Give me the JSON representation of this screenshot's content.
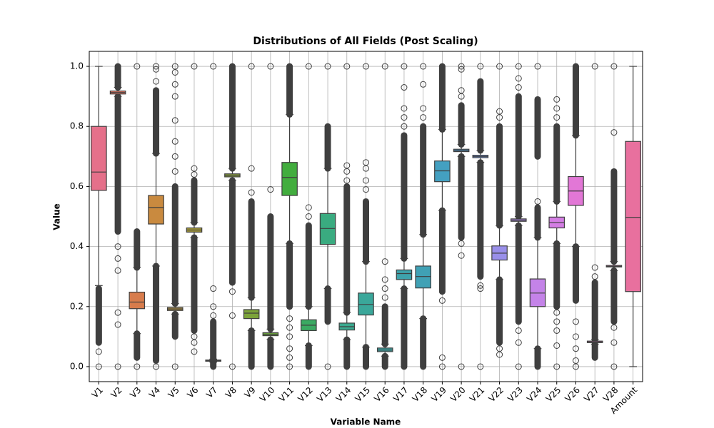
{
  "chart_data": {
    "type": "box",
    "title": "Distributions of All Fields (Post Scaling)",
    "x_label": "Variable Name",
    "y_label": "Value",
    "categories": [
      "V1",
      "V2",
      "V3",
      "V4",
      "V5",
      "V6",
      "V7",
      "V8",
      "V9",
      "V10",
      "V11",
      "V12",
      "V13",
      "V14",
      "V15",
      "V16",
      "V17",
      "V18",
      "V19",
      "V20",
      "V21",
      "V22",
      "V23",
      "V24",
      "V25",
      "V26",
      "V27",
      "V28",
      "Amount"
    ],
    "ylim": [
      -0.05,
      1.05
    ],
    "yticks": [
      {
        "value": 0,
        "label": "0.0"
      },
      {
        "value": 0.2,
        "label": "0.2"
      },
      {
        "value": 0.4,
        "label": "0.4"
      },
      {
        "value": 0.6,
        "label": "0.6"
      },
      {
        "value": 0.8,
        "label": "0.8"
      },
      {
        "value": 1,
        "label": "1.0"
      }
    ],
    "grid": true,
    "boxes": [
      {
        "whislo": 0.27,
        "q1": 0.587,
        "med": 0.648,
        "q3": 0.8,
        "whishi": 1.0,
        "color": "#e5708a",
        "outlier_bands": [
          [
            0.08,
            0.26
          ]
        ],
        "outliers": [
          0.0,
          0.05
        ]
      },
      {
        "whislo": 0.9,
        "q1": 0.908,
        "med": 0.913,
        "q3": 0.918,
        "whishi": 0.93,
        "color": "#e07763",
        "outlier_bands": [
          [
            0.45,
            0.9
          ],
          [
            0.93,
            1.0
          ]
        ],
        "outliers": [
          0.0,
          0.14,
          0.18,
          0.32,
          0.36,
          0.4
        ]
      },
      {
        "whislo": 0.11,
        "q1": 0.193,
        "med": 0.215,
        "q3": 0.248,
        "whishi": 0.33,
        "color": "#d87c4c",
        "outlier_bands": [
          [
            0.03,
            0.11
          ],
          [
            0.33,
            0.45
          ]
        ],
        "outliers": [
          0.0,
          1.0
        ]
      },
      {
        "whislo": 0.335,
        "q1": 0.475,
        "med": 0.53,
        "q3": 0.57,
        "whishi": 0.71,
        "color": "#c98a3f",
        "outlier_bands": [
          [
            0.02,
            0.335
          ],
          [
            0.71,
            0.92
          ]
        ],
        "outliers": [
          0.0,
          0.95,
          0.99,
          1.0
        ]
      },
      {
        "whislo": 0.175,
        "q1": 0.187,
        "med": 0.192,
        "q3": 0.197,
        "whishi": 0.21,
        "color": "#b5923b",
        "outlier_bands": [
          [
            0.1,
            0.175
          ],
          [
            0.21,
            0.6
          ]
        ],
        "outliers": [
          0.0,
          0.65,
          0.7,
          0.75,
          0.82,
          0.9,
          0.94,
          0.98,
          1.0
        ]
      },
      {
        "whislo": 0.43,
        "q1": 0.448,
        "med": 0.455,
        "q3": 0.462,
        "whishi": 0.48,
        "color": "#a59a38",
        "outlier_bands": [
          [
            0.12,
            0.43
          ],
          [
            0.48,
            0.62
          ]
        ],
        "outliers": [
          0.05,
          0.08,
          0.1,
          0.64,
          0.66,
          1.0
        ]
      },
      {
        "whislo": 0.015,
        "q1": 0.018,
        "med": 0.02,
        "q3": 0.022,
        "whishi": 0.025,
        "color": "#989e3a",
        "outlier_bands": [
          [
            0.0,
            0.015
          ],
          [
            0.025,
            0.15
          ]
        ],
        "outliers": [
          0.17,
          0.2,
          0.26,
          1.0
        ]
      },
      {
        "whislo": 0.62,
        "q1": 0.632,
        "med": 0.637,
        "q3": 0.642,
        "whishi": 0.66,
        "color": "#8aa13a",
        "outlier_bands": [
          [
            0.28,
            0.62
          ],
          [
            0.66,
            1.0
          ]
        ],
        "outliers": [
          0.0,
          0.17,
          0.25
        ]
      },
      {
        "whislo": 0.12,
        "q1": 0.16,
        "med": 0.178,
        "q3": 0.19,
        "whishi": 0.23,
        "color": "#7ca33a",
        "outlier_bands": [
          [
            0.0,
            0.12
          ],
          [
            0.23,
            0.55
          ]
        ],
        "outliers": [
          0.58,
          0.66,
          1.0
        ]
      },
      {
        "whislo": 0.09,
        "q1": 0.103,
        "med": 0.108,
        "q3": 0.113,
        "whishi": 0.125,
        "color": "#6ba83a",
        "outlier_bands": [
          [
            0.0,
            0.09
          ],
          [
            0.125,
            0.5
          ]
        ],
        "outliers": [
          0.59,
          1.0
        ]
      },
      {
        "whislo": 0.41,
        "q1": 0.57,
        "med": 0.63,
        "q3": 0.68,
        "whishi": 0.84,
        "color": "#42ad3e",
        "outlier_bands": [
          [
            0.2,
            0.41
          ],
          [
            0.84,
            1.0
          ]
        ],
        "outliers": [
          0.0,
          0.03,
          0.06,
          0.1,
          0.13,
          0.16
        ]
      },
      {
        "whislo": 0.07,
        "q1": 0.12,
        "med": 0.138,
        "q3": 0.156,
        "whishi": 0.2,
        "color": "#3aaa62",
        "outlier_bands": [
          [
            0.0,
            0.07
          ],
          [
            0.2,
            0.47
          ]
        ],
        "outliers": [
          0.5,
          0.53,
          1.0
        ]
      },
      {
        "whislo": 0.26,
        "q1": 0.407,
        "med": 0.46,
        "q3": 0.51,
        "whishi": 0.66,
        "color": "#3aab80",
        "outlier_bands": [
          [
            0.15,
            0.26
          ],
          [
            0.66,
            0.8
          ]
        ],
        "outliers": [
          0.0,
          1.0
        ]
      },
      {
        "whislo": 0.09,
        "q1": 0.122,
        "med": 0.133,
        "q3": 0.145,
        "whishi": 0.18,
        "color": "#3aa98f",
        "outlier_bands": [
          [
            0.0,
            0.09
          ],
          [
            0.18,
            0.6
          ]
        ],
        "outliers": [
          0.62,
          0.65,
          0.67,
          1.0
        ]
      },
      {
        "whislo": 0.065,
        "q1": 0.172,
        "med": 0.207,
        "q3": 0.245,
        "whishi": 0.35,
        "color": "#3aa79a",
        "outlier_bands": [
          [
            0.0,
            0.065
          ],
          [
            0.35,
            0.55
          ]
        ],
        "outliers": [
          0.59,
          0.62,
          0.66,
          0.68,
          1.0
        ]
      },
      {
        "whislo": 0.035,
        "q1": 0.05,
        "med": 0.055,
        "q3": 0.062,
        "whishi": 0.075,
        "color": "#3ba5a3",
        "outlier_bands": [
          [
            0.0,
            0.035
          ],
          [
            0.075,
            0.2
          ]
        ],
        "outliers": [
          0.23,
          0.26,
          0.29,
          0.35,
          1.0
        ]
      },
      {
        "whislo": 0.26,
        "q1": 0.29,
        "med": 0.31,
        "q3": 0.322,
        "whishi": 0.36,
        "color": "#3ea3ab",
        "outlier_bands": [
          [
            0.0,
            0.26
          ],
          [
            0.36,
            0.77
          ]
        ],
        "outliers": [
          0.8,
          0.83,
          0.86,
          0.93,
          1.0
        ]
      },
      {
        "whislo": 0.16,
        "q1": 0.262,
        "med": 0.3,
        "q3": 0.335,
        "whishi": 0.44,
        "color": "#40a1b5",
        "outlier_bands": [
          [
            0.0,
            0.16
          ],
          [
            0.44,
            0.8
          ]
        ],
        "outliers": [
          0.83,
          0.86,
          0.94,
          1.0
        ]
      },
      {
        "whislo": 0.52,
        "q1": 0.616,
        "med": 0.652,
        "q3": 0.685,
        "whishi": 0.79,
        "color": "#44a0c1",
        "outlier_bands": [
          [
            0.25,
            0.52
          ],
          [
            0.79,
            1.0
          ]
        ],
        "outliers": [
          0.0,
          0.03,
          0.22
        ]
      },
      {
        "whislo": 0.7,
        "q1": 0.716,
        "med": 0.72,
        "q3": 0.724,
        "whishi": 0.74,
        "color": "#4f9cd8",
        "outlier_bands": [
          [
            0.43,
            0.7
          ],
          [
            0.74,
            0.87
          ]
        ],
        "outliers": [
          0.0,
          0.37,
          0.41,
          0.9,
          0.92,
          0.99,
          1.0
        ]
      },
      {
        "whislo": 0.68,
        "q1": 0.696,
        "med": 0.7,
        "q3": 0.704,
        "whishi": 0.72,
        "color": "#7197e6",
        "outlier_bands": [
          [
            0.3,
            0.68
          ],
          [
            0.72,
            0.95
          ]
        ],
        "outliers": [
          0.0,
          0.26,
          0.27,
          1.0
        ]
      },
      {
        "whislo": 0.29,
        "q1": 0.355,
        "med": 0.378,
        "q3": 0.402,
        "whishi": 0.47,
        "color": "#998fe9",
        "outlier_bands": [
          [
            0.08,
            0.29
          ],
          [
            0.47,
            0.8
          ]
        ],
        "outliers": [
          0.04,
          0.06,
          0.83,
          0.85,
          1.0
        ]
      },
      {
        "whislo": 0.47,
        "q1": 0.484,
        "med": 0.488,
        "q3": 0.492,
        "whishi": 0.5,
        "color": "#ad89e8",
        "outlier_bands": [
          [
            0.15,
            0.47
          ],
          [
            0.5,
            0.9
          ]
        ],
        "outliers": [
          0.0,
          0.08,
          0.12,
          0.93,
          0.96,
          1.0
        ]
      },
      {
        "whislo": 0.06,
        "q1": 0.2,
        "med": 0.245,
        "q3": 0.292,
        "whishi": 0.43,
        "color": "#c483e8",
        "outlier_bands": [
          [
            0.0,
            0.06
          ],
          [
            0.43,
            0.53
          ],
          [
            0.7,
            0.89
          ]
        ],
        "outliers": [
          0.55,
          1.0
        ]
      },
      {
        "whislo": 0.41,
        "q1": 0.462,
        "med": 0.48,
        "q3": 0.498,
        "whishi": 0.55,
        "color": "#d47ee4",
        "outlier_bands": [
          [
            0.2,
            0.41
          ],
          [
            0.55,
            0.8
          ]
        ],
        "outliers": [
          0.0,
          0.07,
          0.12,
          0.15,
          0.18,
          0.83,
          0.86,
          0.89
        ]
      },
      {
        "whislo": 0.4,
        "q1": 0.537,
        "med": 0.585,
        "q3": 0.633,
        "whishi": 0.77,
        "color": "#e277d6",
        "outlier_bands": [
          [
            0.22,
            0.4
          ],
          [
            0.77,
            1.0
          ]
        ],
        "outliers": [
          0.0,
          0.02,
          0.06,
          0.1,
          0.15
        ]
      },
      {
        "whislo": 0.075,
        "q1": 0.08,
        "med": 0.082,
        "q3": 0.085,
        "whishi": 0.09,
        "color": "#e574c4",
        "outlier_bands": [
          [
            0.03,
            0.075
          ],
          [
            0.09,
            0.28
          ]
        ],
        "outliers": [
          0.3,
          0.33,
          1.0
        ]
      },
      {
        "whislo": 0.32,
        "q1": 0.332,
        "med": 0.334,
        "q3": 0.337,
        "whishi": 0.35,
        "color": "#e772b1",
        "outlier_bands": [
          [
            0.15,
            0.32
          ],
          [
            0.35,
            0.65
          ]
        ],
        "outliers": [
          0.0,
          0.08,
          0.13,
          0.78,
          1.0
        ]
      },
      {
        "whislo": 0.0,
        "q1": 0.25,
        "med": 0.497,
        "q3": 0.75,
        "whishi": 1.0,
        "color": "#e8709e",
        "outlier_bands": [],
        "outliers": []
      }
    ]
  }
}
